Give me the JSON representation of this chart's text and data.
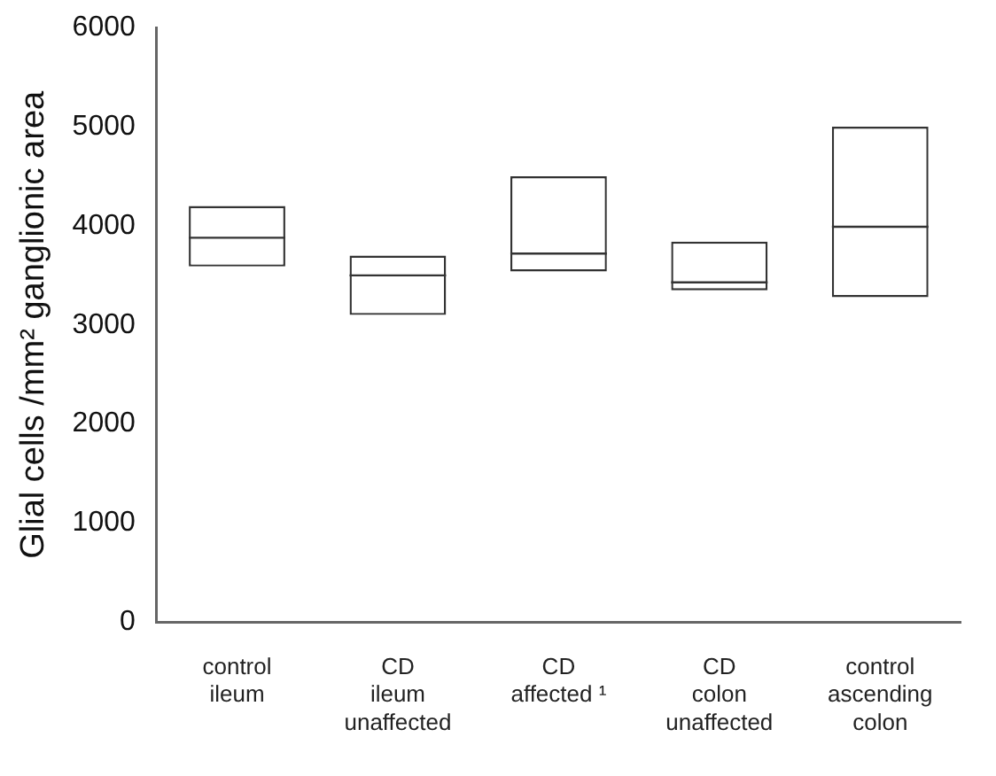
{
  "chart_data": {
    "type": "box",
    "ylabel": "Glial cells /mm² ganglionic area",
    "categories": [
      "control\nileum",
      "CD\nileum\nunaffected",
      "CD\naffected ¹",
      "CD\ncolon\nunaffected",
      "control\nascending\ncolon"
    ],
    "boxes": [
      {
        "low": 3590,
        "q1": 3590,
        "median": 3880,
        "q3": 4200,
        "high": 4200
      },
      {
        "low": 3100,
        "q1": 3100,
        "median": 3500,
        "q3": 3700,
        "high": 3700
      },
      {
        "low": 3540,
        "q1": 3540,
        "median": 3720,
        "q3": 4500,
        "high": 4500
      },
      {
        "low": 3350,
        "q1": 3350,
        "median": 3430,
        "q3": 3840,
        "high": 3840
      },
      {
        "low": 3280,
        "q1": 3280,
        "median": 3990,
        "q3": 5000,
        "high": 5000
      }
    ],
    "color": "#333333",
    "ylim": [
      0,
      6000
    ],
    "yticks": [
      0,
      1000,
      2000,
      3000,
      4000,
      5000,
      6000
    ],
    "grid": false,
    "legend": false
  }
}
